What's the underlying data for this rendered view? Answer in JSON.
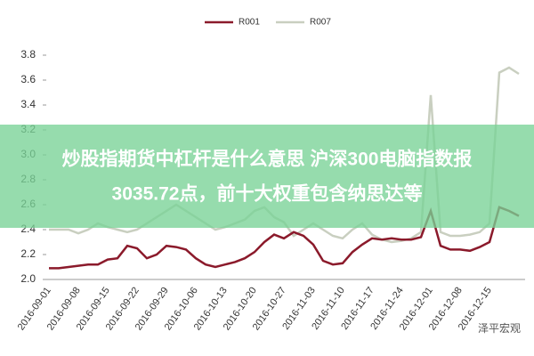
{
  "chart_data": {
    "type": "line",
    "categories": [
      "2016-09-01",
      null,
      null,
      "2016-09-08",
      null,
      null,
      "2016-09-15",
      null,
      null,
      "2016-09-22",
      null,
      null,
      "2016-09-29",
      null,
      null,
      "2016-10-06",
      null,
      null,
      "2016-10-13",
      null,
      null,
      "2016-10-20",
      null,
      null,
      "2016-10-27",
      null,
      null,
      "2016-11-03",
      null,
      null,
      "2016-11-10",
      null,
      null,
      "2016-11-17",
      null,
      null,
      "2016-11-24",
      null,
      null,
      "2016-12-01",
      null,
      null,
      "2016-12-08",
      null,
      null,
      "2016-12-15",
      null,
      null,
      null
    ],
    "series": [
      {
        "name": "R001",
        "color": "#8b1a2b",
        "values": [
          2.09,
          2.09,
          2.1,
          2.11,
          2.12,
          2.12,
          2.16,
          2.17,
          2.27,
          2.25,
          2.17,
          2.2,
          2.27,
          2.26,
          2.24,
          2.17,
          2.12,
          2.1,
          2.12,
          2.14,
          2.17,
          2.22,
          2.3,
          2.36,
          2.33,
          2.38,
          2.35,
          2.28,
          2.15,
          2.12,
          2.13,
          2.22,
          2.28,
          2.33,
          2.32,
          2.33,
          2.32,
          2.32,
          2.34,
          2.55,
          2.27,
          2.24,
          2.24,
          2.23,
          2.26,
          2.3,
          2.58,
          2.55,
          2.51
        ]
      },
      {
        "name": "R007",
        "color": "#c9cfc0",
        "values": [
          2.4,
          2.4,
          2.4,
          2.37,
          2.4,
          2.45,
          2.42,
          2.4,
          2.38,
          2.4,
          2.45,
          2.5,
          2.55,
          2.6,
          2.55,
          2.5,
          2.45,
          2.4,
          2.42,
          2.45,
          2.48,
          2.55,
          2.58,
          2.5,
          2.46,
          2.35,
          2.4,
          2.45,
          2.4,
          2.35,
          2.33,
          2.4,
          2.45,
          2.36,
          2.32,
          2.3,
          2.31,
          2.33,
          2.38,
          3.48,
          2.38,
          2.35,
          2.35,
          2.36,
          2.38,
          2.45,
          3.66,
          3.7,
          3.65
        ]
      }
    ],
    "ylim": [
      2,
      3.8
    ],
    "yticks": [
      {
        "value": 2,
        "label": "2.0"
      },
      2.2,
      2.4,
      2.6,
      2.8,
      {
        "value": 3,
        "label": "3.0"
      },
      3.2,
      3.4,
      3.6,
      3.8
    ],
    "grid": false,
    "legend": "top"
  },
  "overlay": {
    "lines": [
      "炒股指期货中杠杆是什么意思 沪深300电脑指数报",
      "3035.72点，前十大权重包含纳思达等"
    ]
  },
  "watermark": "泽平宏观"
}
